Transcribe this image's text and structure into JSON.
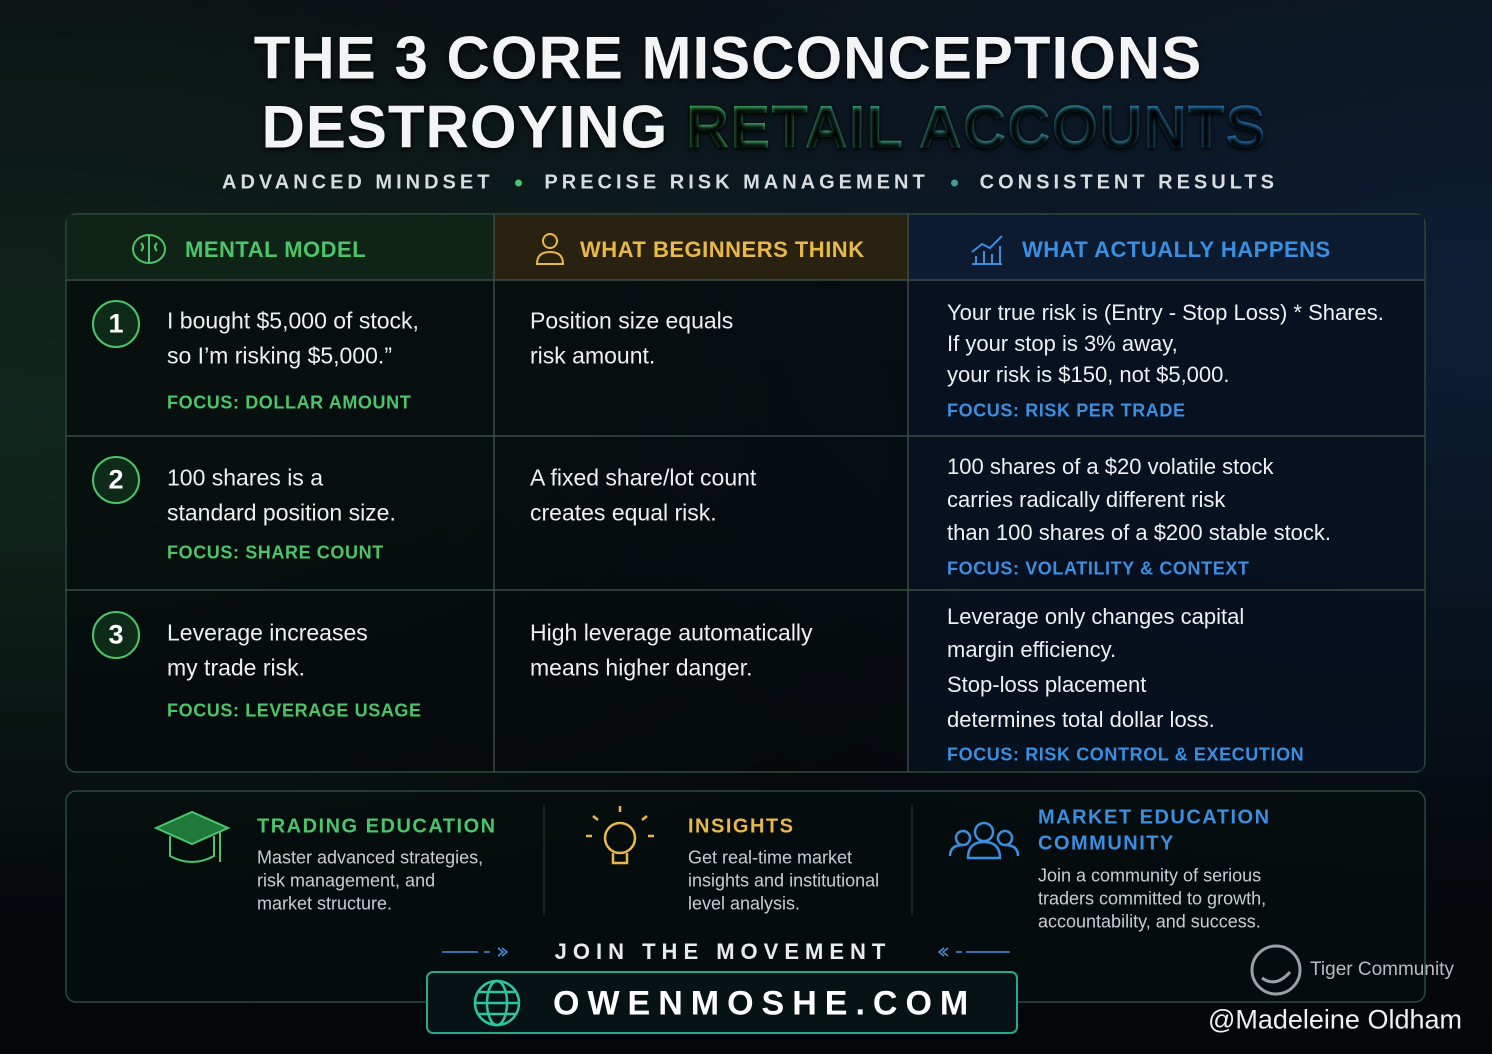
{
  "header": {
    "title_line_1": "THE 3 CORE MISCONCEPTIONS",
    "title_line_2": [
      "DESTROYING",
      "RETAIL ACCOUNTS"
    ],
    "tagline": [
      "ADVANCED MINDSET",
      "PRECISE RISK MANAGEMENT",
      "CONSISTENT RESULTS"
    ]
  },
  "table": {
    "columns": [
      "MENTAL MODEL",
      "WHAT BEGINNERS THINK",
      "WHAT ACTUALLY HAPPENS"
    ],
    "rows": [
      {
        "number": 1,
        "claim": [
          "I bought $5,000 of stock,",
          "so I’m risking $5,000.”"
        ],
        "focus": "FOCUS: DOLLAR AMOUNT",
        "beginners": [
          "Position size equals",
          "risk amount."
        ],
        "actual": [
          "Your true risk is (Entry - Stop Loss) * Shares.",
          "If your stop is 3% away,",
          "your risk is $150, not $5,000."
        ],
        "actual_focus": "FOCUS: RISK PER TRADE"
      },
      {
        "number": 2,
        "claim": [
          "100 shares is a",
          "standard position size."
        ],
        "focus": "FOCUS: SHARE COUNT",
        "beginners": [
          "A fixed share/lot count",
          "creates equal risk."
        ],
        "actual": [
          "100 shares of a $20 volatile stock",
          "carries radically different risk",
          "than 100 shares of a $200 stable stock."
        ],
        "actual_focus": "FOCUS: VOLATILITY & CONTEXT"
      },
      {
        "number": 3,
        "claim": [
          "Leverage increases",
          "my trade risk."
        ],
        "focus": "FOCUS: LEVERAGE USAGE",
        "beginners": [
          "High leverage automatically",
          "means higher danger."
        ],
        "actual": [
          "Leverage only changes capital",
          "margin efficiency.",
          "Stop-loss placement",
          "determines total dollar loss."
        ],
        "actual_focus": "FOCUS: RISK CONTROL & EXECUTION"
      }
    ]
  },
  "footer": {
    "features": [
      {
        "title": [
          "TRADING EDUCATION"
        ],
        "text": [
          "Master advanced strategies,",
          "risk management, and",
          "market structure."
        ]
      },
      {
        "title": [
          "INSIGHTS"
        ],
        "text": [
          "Get real-time market",
          "insights and institutional",
          "level analysis."
        ]
      },
      {
        "title": [
          "MARKET EDUCATION",
          "COMMUNITY"
        ],
        "text": [
          "Join a community of serious",
          "traders committed to growth,",
          "accountability, and success."
        ]
      }
    ],
    "cta": "JOIN THE MOVEMENT",
    "url": "OWENMOSHE.COM"
  },
  "watermark": {
    "brand": "Tiger Community",
    "author": "@Madeleine Oldham"
  }
}
